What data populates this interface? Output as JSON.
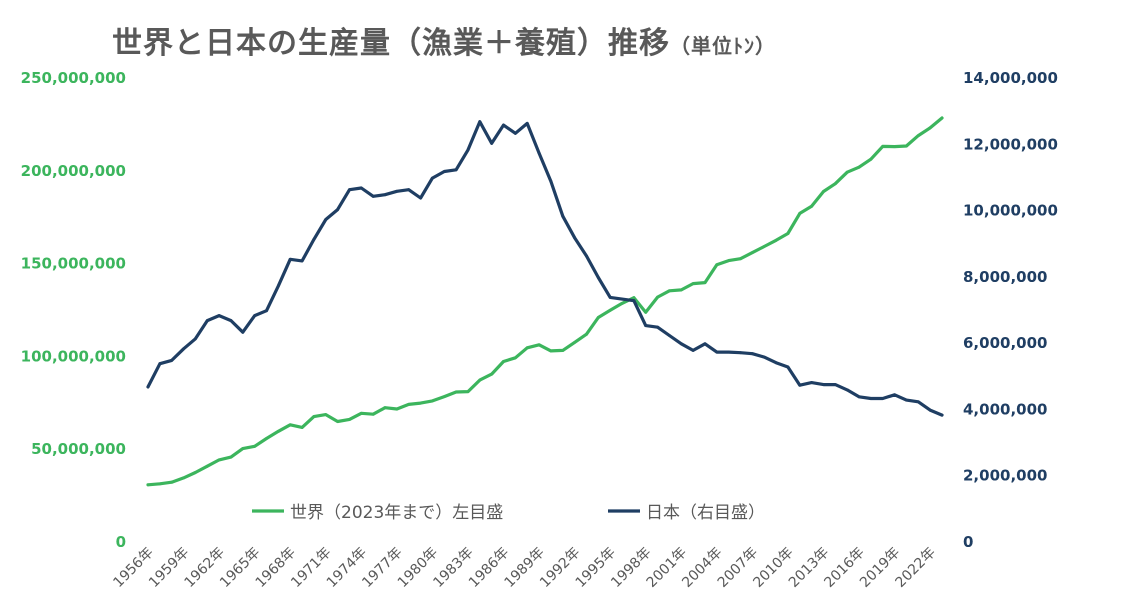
{
  "title": "世界と日本の生産量（漁業＋養殖）推移",
  "unit_note": "（単位ﾄﾝ）",
  "colors": {
    "world": "#3cb55d",
    "japan": "#1f3e63",
    "text": "#595959",
    "left_axis": "#3cb55d",
    "right_axis": "#1f3e63"
  },
  "chart_data": {
    "type": "line",
    "title": "世界と日本の生産量（漁業＋養殖）推移",
    "legend_position": "bottom-inside",
    "grid": false,
    "x": [
      1956,
      1957,
      1958,
      1959,
      1960,
      1961,
      1962,
      1963,
      1964,
      1965,
      1966,
      1967,
      1968,
      1969,
      1970,
      1971,
      1972,
      1973,
      1974,
      1975,
      1976,
      1977,
      1978,
      1979,
      1980,
      1981,
      1982,
      1983,
      1984,
      1985,
      1986,
      1987,
      1988,
      1989,
      1990,
      1991,
      1992,
      1993,
      1994,
      1995,
      1996,
      1997,
      1998,
      1999,
      2000,
      2001,
      2002,
      2003,
      2004,
      2005,
      2006,
      2007,
      2008,
      2009,
      2010,
      2011,
      2012,
      2013,
      2014,
      2015,
      2016,
      2017,
      2018,
      2019,
      2020,
      2021,
      2022,
      2023
    ],
    "tick_labels": [
      "1956年",
      "1959年",
      "1962年",
      "1965年",
      "1968年",
      "1971年",
      "1974年",
      "1977年",
      "1980年",
      "1983年",
      "1986年",
      "1989年",
      "1992年",
      "1995年",
      "1998年",
      "2001年",
      "2004年",
      "2007年",
      "2010年",
      "2013年",
      "2016年",
      "2019年",
      "2022年"
    ],
    "y_left": {
      "min": 0,
      "max": 250000000,
      "ticks": [
        "0",
        "50,000,000",
        "100,000,000",
        "150,000,000",
        "200,000,000",
        "250,000,000"
      ]
    },
    "y_right": {
      "min": 0,
      "max": 14000000,
      "ticks": [
        "0",
        "2,000,000",
        "4,000,000",
        "6,000,000",
        "8,000,000",
        "10,000,000",
        "12,000,000",
        "14,000,000"
      ]
    },
    "series": [
      {
        "name": "世界（2023年まで）左目盛",
        "axis": "left",
        "values": [
          30300000,
          30800000,
          31700000,
          34000000,
          36900000,
          40300000,
          43700000,
          45200000,
          49800000,
          51000000,
          55200000,
          59100000,
          62600000,
          61200000,
          67000000,
          68100000,
          64400000,
          65500000,
          68800000,
          68300000,
          71800000,
          71100000,
          73600000,
          74300000,
          75500000,
          77800000,
          80300000,
          80500000,
          86700000,
          89900000,
          96700000,
          98700000,
          104100000,
          105700000,
          102400000,
          102700000,
          107000000,
          111400000,
          120400000,
          124300000,
          128000000,
          131100000,
          123300000,
          131400000,
          134800000,
          135300000,
          138700000,
          139200000,
          148800000,
          151100000,
          152100000,
          155400000,
          158700000,
          162000000,
          165700000,
          176500000,
          180400000,
          188300000,
          192500000,
          198700000,
          201400000,
          205700000,
          212600000,
          212500000,
          212800000,
          218400000,
          222600000,
          227900000
        ]
      },
      {
        "name": "日本（右目盛）",
        "axis": "right",
        "values": [
          4650000,
          5350000,
          5450000,
          5800000,
          6100000,
          6650000,
          6800000,
          6650000,
          6300000,
          6800000,
          6950000,
          7700000,
          8500000,
          8450000,
          9100000,
          9700000,
          10000000,
          10600000,
          10650000,
          10400000,
          10450000,
          10550000,
          10600000,
          10350000,
          10950000,
          11150000,
          11200000,
          11800000,
          12650000,
          12000000,
          12550000,
          12300000,
          12600000,
          11700000,
          10850000,
          9800000,
          9150000,
          8600000,
          7950000,
          7350000,
          7300000,
          7250000,
          6500000,
          6450000,
          6200000,
          5950000,
          5750000,
          5950000,
          5700000,
          5700000,
          5680000,
          5650000,
          5550000,
          5380000,
          5250000,
          4700000,
          4780000,
          4720000,
          4720000,
          4560000,
          4350000,
          4300000,
          4300000,
          4410000,
          4250000,
          4200000,
          3950000,
          3800000
        ]
      }
    ]
  }
}
